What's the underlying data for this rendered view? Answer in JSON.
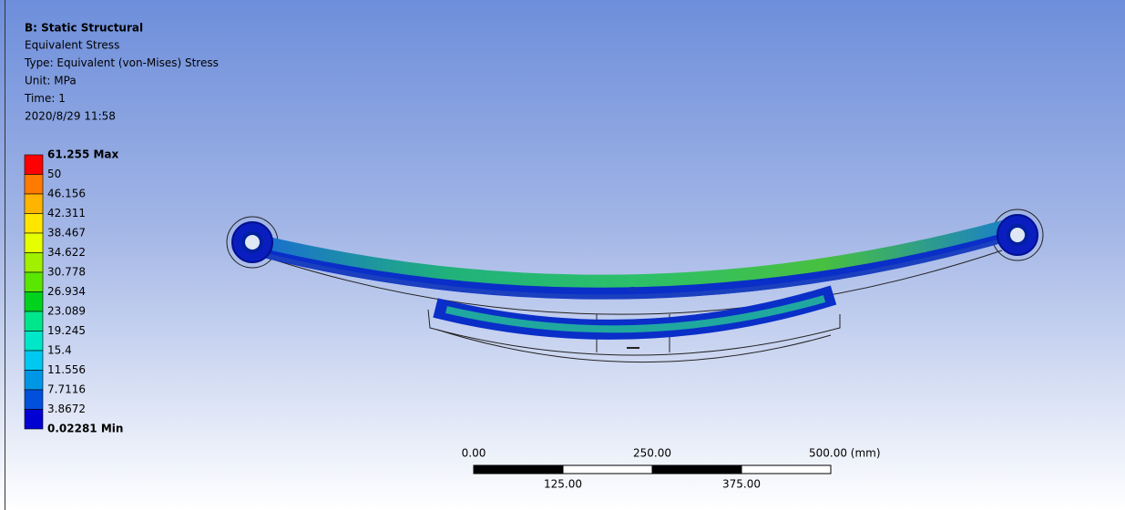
{
  "header": {
    "title": "B: Static Structural",
    "lines": [
      "Equivalent Stress",
      "Type: Equivalent (von-Mises) Stress",
      "Unit: MPa",
      "Time: 1",
      "2020/8/29 11:58"
    ]
  },
  "legend": {
    "labels": [
      "61.255 Max",
      "50",
      "46.156",
      "42.311",
      "38.467",
      "34.622",
      "30.778",
      "26.934",
      "23.089",
      "19.245",
      "15.4",
      "11.556",
      "7.7116",
      "3.8672",
      "0.02281 Min"
    ],
    "colors": [
      "#ff0000",
      "#ff7a00",
      "#ffb400",
      "#ffe600",
      "#e6ff00",
      "#a0f000",
      "#5ae600",
      "#00d21e",
      "#00e68c",
      "#00e6c8",
      "#00c8f0",
      "#0096e6",
      "#0050dc",
      "#0000d2"
    ]
  },
  "scale_bar": {
    "top_labels": [
      "0.00",
      "250.00",
      "500.00 (mm)"
    ],
    "bottom_labels": [
      "125.00",
      "375.00"
    ]
  }
}
